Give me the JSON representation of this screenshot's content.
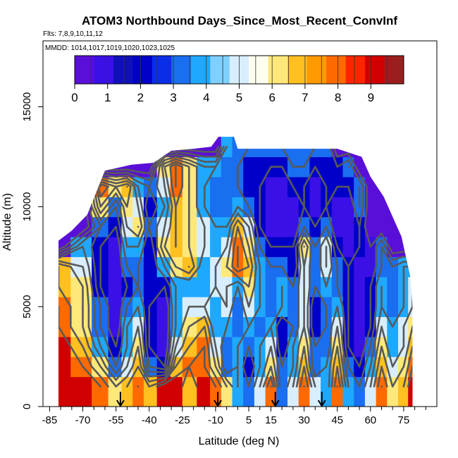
{
  "chart_data": {
    "type": "heatmap",
    "title": "ATOM3 Northbound Days_Since_Most_Recent_ConvInf",
    "subtitle_flights": "Flts: 7,8,9,10,11,12",
    "subtitle_dates": "MMDD: 1014,1017,1019,1020,1023,1025",
    "xlabel": "Latitude (deg N)",
    "ylabel": "Altitude (m)",
    "xlim": [
      -85,
      85
    ],
    "ylim": [
      0,
      17500
    ],
    "x_ticks": [
      -85,
      -70,
      -55,
      -40,
      -25,
      -10,
      5,
      15,
      30,
      45,
      60,
      75
    ],
    "y_ticks": [
      0,
      5000,
      10000,
      15000
    ],
    "colorbar": {
      "range": [
        0,
        10
      ],
      "ticks": [
        0,
        1,
        2,
        3,
        4,
        5,
        6,
        7,
        8,
        9
      ],
      "colors": [
        "#5a0fd8",
        "#3a10e6",
        "#1010b8",
        "#0000c8",
        "#0a2ee8",
        "#1a6ef0",
        "#1ea8ff",
        "#7fd0ff",
        "#d8eeff",
        "#fffff0",
        "#ffe87a",
        "#ffc020",
        "#ff9a00",
        "#ff6a00",
        "#ff2400",
        "#d00000",
        "#9a1e1e"
      ]
    },
    "profile_latitudes": [
      -53,
      -9,
      17,
      38
    ],
    "data_extent_latitude": [
      -81,
      79
    ],
    "data_extent_altitude_m": [
      0,
      13500
    ],
    "grid": false,
    "series": [
      {
        "x": [
          -81,
          -70,
          -62,
          -55,
          -50,
          -45,
          -40,
          -33,
          -28,
          -22,
          -15,
          -10,
          -5,
          0,
          5,
          10,
          15,
          20,
          25,
          30,
          35,
          40,
          45,
          50,
          55,
          60,
          65,
          70,
          75,
          79
        ],
        "y": [
          1000,
          2000,
          3000,
          4000,
          5000,
          6000,
          7000,
          8000,
          9000,
          10000,
          11000,
          12000,
          13000
        ],
        "values": [
          [
            9,
            9,
            8,
            6,
            7,
            8,
            7,
            9,
            9,
            7,
            9,
            8,
            6,
            4,
            3,
            5,
            8,
            3,
            5,
            8,
            5,
            4,
            8,
            4,
            3,
            5,
            8,
            6,
            7,
            9
          ],
          [
            9,
            8,
            6,
            3,
            5,
            7,
            3,
            2,
            7,
            8,
            8,
            6,
            3,
            4,
            2,
            4,
            6,
            3,
            4,
            7,
            3,
            4,
            7,
            3,
            2,
            4,
            7,
            5,
            6,
            8
          ],
          [
            9,
            7,
            4,
            2,
            4,
            6,
            2,
            1,
            5,
            7,
            8,
            5,
            3,
            4,
            3,
            4,
            5,
            2,
            4,
            6,
            3,
            3,
            6,
            2,
            1,
            3,
            6,
            4,
            5,
            7
          ],
          [
            8,
            6,
            3,
            1,
            4,
            5,
            2,
            1,
            4,
            6,
            7,
            4,
            4,
            3,
            4,
            3,
            4,
            2,
            3,
            5,
            2,
            3,
            5,
            2,
            1,
            2,
            5,
            4,
            5,
            6
          ],
          [
            8,
            6,
            3,
            1,
            3,
            4,
            2,
            1,
            4,
            5,
            5,
            4,
            5,
            3,
            5,
            4,
            3,
            4,
            3,
            5,
            2,
            3,
            4,
            2,
            1,
            2,
            4,
            3,
            4,
            5
          ],
          [
            7,
            6,
            2,
            1,
            2,
            3,
            2,
            2,
            4,
            4,
            4,
            5,
            5,
            4,
            6,
            4,
            3,
            4,
            3,
            5,
            3,
            4,
            3,
            2,
            1,
            2,
            4,
            3,
            4,
            5
          ],
          [
            7,
            5,
            2,
            1,
            3,
            3,
            2,
            4,
            6,
            7,
            4,
            5,
            6,
            8,
            7,
            4,
            3,
            3,
            2,
            5,
            3,
            5,
            3,
            2,
            1,
            1,
            3,
            3,
            4,
            4
          ],
          [
            0,
            4,
            2,
            1,
            4,
            4,
            2,
            6,
            7,
            6,
            5,
            4,
            5,
            8,
            6,
            3,
            2,
            2,
            2,
            6,
            3,
            5,
            2,
            1,
            2,
            1,
            3,
            0,
            0,
            0
          ],
          [
            0,
            0,
            3,
            2,
            5,
            6,
            3,
            5,
            7,
            6,
            5,
            4,
            4,
            7,
            5,
            2,
            1,
            1,
            1,
            3,
            2,
            3,
            1,
            1,
            2,
            0,
            0,
            0,
            0,
            0
          ],
          [
            0,
            0,
            6,
            3,
            6,
            5,
            2,
            4,
            7,
            6,
            4,
            3,
            3,
            4,
            3,
            2,
            1,
            1,
            1,
            2,
            1,
            2,
            1,
            1,
            3,
            0,
            0,
            0,
            0,
            0
          ],
          [
            0,
            0,
            8,
            6,
            7,
            4,
            3,
            5,
            8,
            6,
            4,
            3,
            3,
            3,
            2,
            2,
            1,
            1,
            2,
            2,
            1,
            2,
            2,
            2,
            3,
            0,
            0,
            0,
            0,
            0
          ],
          [
            0,
            0,
            0,
            0,
            0,
            0,
            0,
            6,
            8,
            6,
            4,
            4,
            3,
            3,
            2,
            2,
            2,
            2,
            3,
            3,
            2,
            2,
            2,
            3,
            0,
            0,
            0,
            0,
            0,
            0
          ],
          [
            0,
            0,
            0,
            0,
            0,
            0,
            0,
            0,
            0,
            0,
            0,
            0,
            4,
            3,
            3,
            3,
            3,
            3,
            3,
            3,
            3,
            3,
            0,
            0,
            0,
            0,
            0,
            0,
            0,
            0
          ]
        ]
      }
    ]
  }
}
